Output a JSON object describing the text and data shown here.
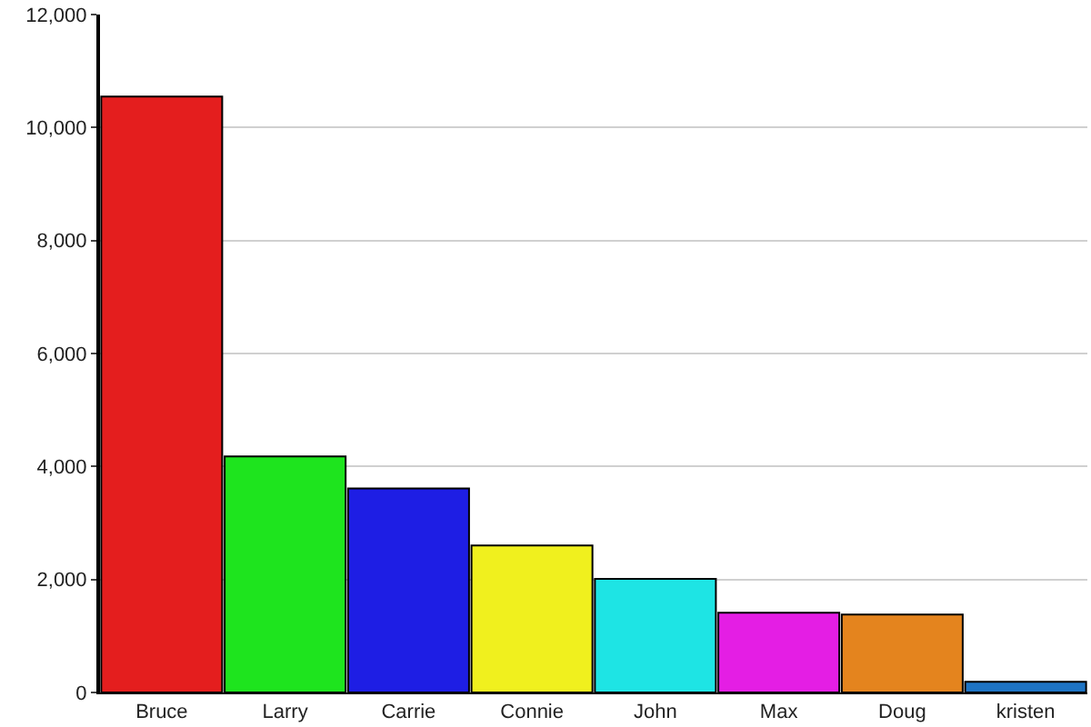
{
  "chart_data": {
    "type": "bar",
    "categories": [
      "Bruce",
      "Larry",
      "Carrie",
      "Connie",
      "John",
      "Max",
      "Doug",
      "kristen"
    ],
    "values": [
      10550,
      4180,
      3610,
      2600,
      2010,
      1410,
      1380,
      190
    ],
    "colors": [
      "#e41e1e",
      "#1ee41e",
      "#1e1ee4",
      "#f0f01e",
      "#1ee4e4",
      "#e41ee4",
      "#e4841e",
      "#1e74c4"
    ],
    "ylim": [
      0,
      12000
    ],
    "yticks": [
      {
        "value": 0,
        "label": "0"
      },
      {
        "value": 2000,
        "label": "2,000"
      },
      {
        "value": 4000,
        "label": "4,000"
      },
      {
        "value": 6000,
        "label": "6,000"
      },
      {
        "value": 8000,
        "label": "8,000"
      },
      {
        "value": 10000,
        "label": "10,000"
      },
      {
        "value": 12000,
        "label": "12,000"
      }
    ],
    "grid": "y",
    "legend": false
  }
}
